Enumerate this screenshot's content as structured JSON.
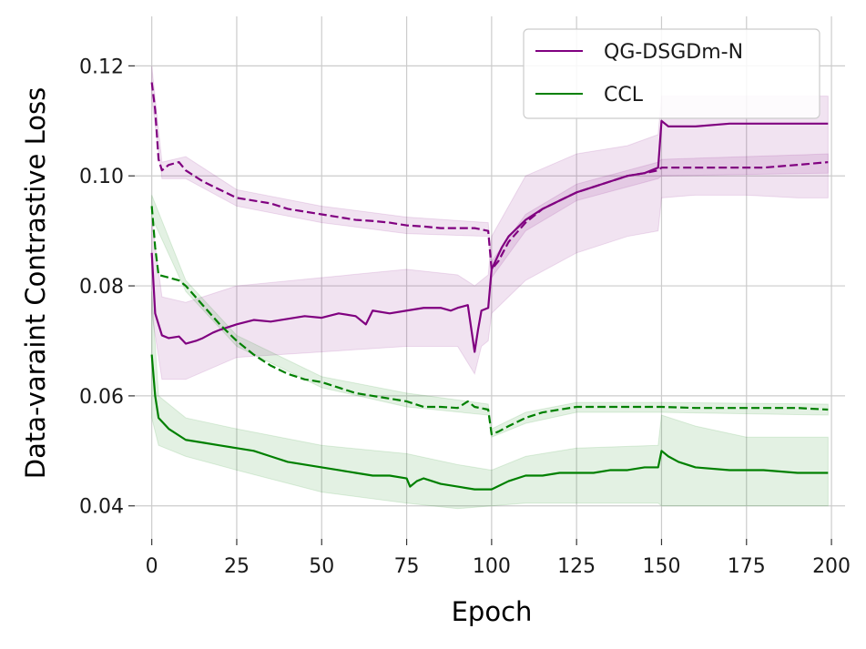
{
  "chart_data": {
    "type": "line",
    "xlabel": "Epoch",
    "ylabel": "Data-varaint Contrastive Loss",
    "xlim": [
      -5,
      204
    ],
    "ylim": [
      0.034,
      0.129
    ],
    "xticks": [
      0,
      25,
      50,
      75,
      100,
      125,
      150,
      175,
      200
    ],
    "yticks": [
      0.04,
      0.06,
      0.08,
      0.1,
      0.12
    ],
    "xtick_labels": [
      "0",
      "25",
      "50",
      "75",
      "100",
      "125",
      "150",
      "175",
      "200"
    ],
    "ytick_labels": [
      "0.04",
      "0.06",
      "0.08",
      "0.10",
      "0.12"
    ],
    "grid": true,
    "legend_position": "top-right",
    "series": [
      {
        "name": "QG-DSGDm-N",
        "color": "#800080",
        "line_style": "solid",
        "points": [
          [
            0,
            0.086
          ],
          [
            1,
            0.075
          ],
          [
            3,
            0.071
          ],
          [
            5,
            0.0705
          ],
          [
            8,
            0.0708
          ],
          [
            10,
            0.0695
          ],
          [
            13,
            0.07
          ],
          [
            15,
            0.0705
          ],
          [
            18,
            0.0715
          ],
          [
            20,
            0.072
          ],
          [
            25,
            0.073
          ],
          [
            30,
            0.0738
          ],
          [
            35,
            0.0735
          ],
          [
            40,
            0.074
          ],
          [
            45,
            0.0745
          ],
          [
            50,
            0.0742
          ],
          [
            55,
            0.075
          ],
          [
            60,
            0.0745
          ],
          [
            63,
            0.073
          ],
          [
            65,
            0.0755
          ],
          [
            70,
            0.075
          ],
          [
            75,
            0.0755
          ],
          [
            80,
            0.076
          ],
          [
            85,
            0.076
          ],
          [
            88,
            0.0755
          ],
          [
            90,
            0.076
          ],
          [
            93,
            0.0765
          ],
          [
            95,
            0.068
          ],
          [
            96,
            0.072
          ],
          [
            97,
            0.0755
          ],
          [
            99,
            0.076
          ],
          [
            100,
            0.083
          ],
          [
            103,
            0.087
          ],
          [
            105,
            0.089
          ],
          [
            110,
            0.092
          ],
          [
            115,
            0.094
          ],
          [
            120,
            0.0955
          ],
          [
            125,
            0.097
          ],
          [
            130,
            0.098
          ],
          [
            135,
            0.099
          ],
          [
            140,
            0.1
          ],
          [
            145,
            0.1005
          ],
          [
            149,
            0.1015
          ],
          [
            150,
            0.11
          ],
          [
            152,
            0.109
          ],
          [
            155,
            0.109
          ],
          [
            160,
            0.109
          ],
          [
            170,
            0.1095
          ],
          [
            180,
            0.1095
          ],
          [
            190,
            0.1095
          ],
          [
            199,
            0.1095
          ]
        ],
        "band_lower": [
          [
            0,
            0.075
          ],
          [
            3,
            0.063
          ],
          [
            10,
            0.063
          ],
          [
            25,
            0.067
          ],
          [
            50,
            0.068
          ],
          [
            75,
            0.069
          ],
          [
            90,
            0.069
          ],
          [
            95,
            0.064
          ],
          [
            97,
            0.069
          ],
          [
            99,
            0.07
          ],
          [
            100,
            0.075
          ],
          [
            110,
            0.081
          ],
          [
            125,
            0.086
          ],
          [
            140,
            0.089
          ],
          [
            149,
            0.09
          ],
          [
            150,
            0.096
          ],
          [
            160,
            0.0965
          ],
          [
            175,
            0.0965
          ],
          [
            190,
            0.096
          ],
          [
            199,
            0.096
          ]
        ],
        "band_upper": [
          [
            0,
            0.092
          ],
          [
            3,
            0.078
          ],
          [
            10,
            0.077
          ],
          [
            25,
            0.08
          ],
          [
            50,
            0.0815
          ],
          [
            75,
            0.083
          ],
          [
            90,
            0.082
          ],
          [
            95,
            0.08
          ],
          [
            97,
            0.081
          ],
          [
            99,
            0.082
          ],
          [
            100,
            0.089
          ],
          [
            110,
            0.1
          ],
          [
            125,
            0.104
          ],
          [
            140,
            0.1055
          ],
          [
            149,
            0.1075
          ],
          [
            150,
            0.1145
          ],
          [
            160,
            0.1145
          ],
          [
            175,
            0.1145
          ],
          [
            190,
            0.1145
          ],
          [
            199,
            0.1145
          ]
        ]
      },
      {
        "name": "",
        "color": "#800080",
        "line_style": "dashed",
        "points": [
          [
            0,
            0.117
          ],
          [
            1,
            0.112
          ],
          [
            2,
            0.103
          ],
          [
            3,
            0.101
          ],
          [
            5,
            0.102
          ],
          [
            8,
            0.1025
          ],
          [
            10,
            0.101
          ],
          [
            15,
            0.099
          ],
          [
            20,
            0.0975
          ],
          [
            25,
            0.096
          ],
          [
            30,
            0.0955
          ],
          [
            35,
            0.095
          ],
          [
            40,
            0.094
          ],
          [
            45,
            0.0935
          ],
          [
            50,
            0.093
          ],
          [
            55,
            0.0925
          ],
          [
            60,
            0.092
          ],
          [
            65,
            0.0918
          ],
          [
            70,
            0.0915
          ],
          [
            75,
            0.091
          ],
          [
            80,
            0.0908
          ],
          [
            85,
            0.0905
          ],
          [
            90,
            0.0905
          ],
          [
            95,
            0.0905
          ],
          [
            99,
            0.09
          ],
          [
            100,
            0.083
          ],
          [
            102,
            0.0845
          ],
          [
            105,
            0.088
          ],
          [
            110,
            0.0915
          ],
          [
            115,
            0.094
          ],
          [
            120,
            0.0955
          ],
          [
            125,
            0.097
          ],
          [
            130,
            0.098
          ],
          [
            135,
            0.099
          ],
          [
            140,
            0.1
          ],
          [
            145,
            0.1005
          ],
          [
            149,
            0.101
          ],
          [
            150,
            0.1015
          ],
          [
            155,
            0.1015
          ],
          [
            160,
            0.1015
          ],
          [
            170,
            0.1015
          ],
          [
            180,
            0.1015
          ],
          [
            190,
            0.102
          ],
          [
            199,
            0.1025
          ]
        ],
        "band_lower": [
          [
            0,
            0.114
          ],
          [
            3,
            0.0995
          ],
          [
            10,
            0.0995
          ],
          [
            25,
            0.0945
          ],
          [
            50,
            0.0915
          ],
          [
            75,
            0.0895
          ],
          [
            99,
            0.089
          ],
          [
            100,
            0.0815
          ],
          [
            110,
            0.09
          ],
          [
            125,
            0.0955
          ],
          [
            149,
            0.0995
          ],
          [
            150,
            0.1
          ],
          [
            199,
            0.1005
          ]
        ],
        "band_upper": [
          [
            0,
            0.12
          ],
          [
            3,
            0.1025
          ],
          [
            10,
            0.1035
          ],
          [
            25,
            0.0975
          ],
          [
            50,
            0.0945
          ],
          [
            75,
            0.0925
          ],
          [
            99,
            0.0915
          ],
          [
            100,
            0.0845
          ],
          [
            110,
            0.093
          ],
          [
            125,
            0.0985
          ],
          [
            149,
            0.1025
          ],
          [
            150,
            0.103
          ],
          [
            199,
            0.104
          ]
        ]
      },
      {
        "name": "CCL",
        "color": "#008000",
        "line_style": "solid",
        "points": [
          [
            0,
            0.0675
          ],
          [
            1,
            0.06
          ],
          [
            2,
            0.056
          ],
          [
            5,
            0.054
          ],
          [
            10,
            0.052
          ],
          [
            15,
            0.0515
          ],
          [
            20,
            0.051
          ],
          [
            25,
            0.0505
          ],
          [
            30,
            0.05
          ],
          [
            35,
            0.049
          ],
          [
            40,
            0.048
          ],
          [
            45,
            0.0475
          ],
          [
            50,
            0.047
          ],
          [
            55,
            0.0465
          ],
          [
            60,
            0.046
          ],
          [
            65,
            0.0455
          ],
          [
            70,
            0.0455
          ],
          [
            75,
            0.045
          ],
          [
            76,
            0.0435
          ],
          [
            78,
            0.0445
          ],
          [
            80,
            0.045
          ],
          [
            85,
            0.044
          ],
          [
            90,
            0.0435
          ],
          [
            95,
            0.043
          ],
          [
            100,
            0.043
          ],
          [
            105,
            0.0445
          ],
          [
            110,
            0.0455
          ],
          [
            115,
            0.0455
          ],
          [
            120,
            0.046
          ],
          [
            125,
            0.046
          ],
          [
            130,
            0.046
          ],
          [
            135,
            0.0465
          ],
          [
            140,
            0.0465
          ],
          [
            145,
            0.047
          ],
          [
            149,
            0.047
          ],
          [
            150,
            0.05
          ],
          [
            152,
            0.049
          ],
          [
            155,
            0.048
          ],
          [
            160,
            0.047
          ],
          [
            170,
            0.0465
          ],
          [
            180,
            0.0465
          ],
          [
            190,
            0.046
          ],
          [
            199,
            0.046
          ]
        ],
        "band_lower": [
          [
            0,
            0.056
          ],
          [
            2,
            0.051
          ],
          [
            10,
            0.049
          ],
          [
            25,
            0.0465
          ],
          [
            50,
            0.0425
          ],
          [
            75,
            0.0405
          ],
          [
            90,
            0.0395
          ],
          [
            100,
            0.04
          ],
          [
            110,
            0.0405
          ],
          [
            125,
            0.0405
          ],
          [
            149,
            0.0405
          ],
          [
            150,
            0.04
          ],
          [
            175,
            0.04
          ],
          [
            199,
            0.04
          ]
        ],
        "band_upper": [
          [
            0,
            0.079
          ],
          [
            2,
            0.06
          ],
          [
            10,
            0.056
          ],
          [
            25,
            0.054
          ],
          [
            50,
            0.051
          ],
          [
            75,
            0.0495
          ],
          [
            90,
            0.0475
          ],
          [
            100,
            0.0465
          ],
          [
            110,
            0.049
          ],
          [
            125,
            0.0505
          ],
          [
            149,
            0.051
          ],
          [
            150,
            0.0565
          ],
          [
            160,
            0.0545
          ],
          [
            175,
            0.0525
          ],
          [
            199,
            0.0525
          ]
        ]
      },
      {
        "name": "",
        "color": "#008000",
        "line_style": "dashed",
        "points": [
          [
            0,
            0.0945
          ],
          [
            1,
            0.087
          ],
          [
            2,
            0.082
          ],
          [
            5,
            0.0815
          ],
          [
            8,
            0.081
          ],
          [
            10,
            0.08
          ],
          [
            15,
            0.0765
          ],
          [
            20,
            0.073
          ],
          [
            25,
            0.07
          ],
          [
            30,
            0.0675
          ],
          [
            35,
            0.0655
          ],
          [
            40,
            0.064
          ],
          [
            45,
            0.063
          ],
          [
            50,
            0.0625
          ],
          [
            55,
            0.0615
          ],
          [
            60,
            0.0605
          ],
          [
            65,
            0.06
          ],
          [
            70,
            0.0595
          ],
          [
            75,
            0.059
          ],
          [
            80,
            0.058
          ],
          [
            85,
            0.058
          ],
          [
            90,
            0.0578
          ],
          [
            93,
            0.059
          ],
          [
            95,
            0.058
          ],
          [
            99,
            0.0575
          ],
          [
            100,
            0.053
          ],
          [
            102,
            0.0535
          ],
          [
            105,
            0.0545
          ],
          [
            110,
            0.056
          ],
          [
            115,
            0.057
          ],
          [
            120,
            0.0575
          ],
          [
            125,
            0.058
          ],
          [
            130,
            0.058
          ],
          [
            140,
            0.058
          ],
          [
            150,
            0.058
          ],
          [
            160,
            0.0578
          ],
          [
            170,
            0.0578
          ],
          [
            180,
            0.0578
          ],
          [
            190,
            0.0578
          ],
          [
            199,
            0.0575
          ]
        ],
        "band_lower": [
          [
            0,
            0.0925
          ],
          [
            10,
            0.079
          ],
          [
            25,
            0.069
          ],
          [
            50,
            0.0615
          ],
          [
            75,
            0.058
          ],
          [
            99,
            0.0565
          ],
          [
            100,
            0.0525
          ],
          [
            110,
            0.055
          ],
          [
            125,
            0.057
          ],
          [
            150,
            0.057
          ],
          [
            199,
            0.0565
          ]
        ],
        "band_upper": [
          [
            0,
            0.0965
          ],
          [
            10,
            0.081
          ],
          [
            25,
            0.071
          ],
          [
            50,
            0.0635
          ],
          [
            75,
            0.0605
          ],
          [
            99,
            0.0585
          ],
          [
            100,
            0.054
          ],
          [
            110,
            0.057
          ],
          [
            125,
            0.0588
          ],
          [
            150,
            0.0588
          ],
          [
            199,
            0.0585
          ]
        ]
      }
    ]
  }
}
